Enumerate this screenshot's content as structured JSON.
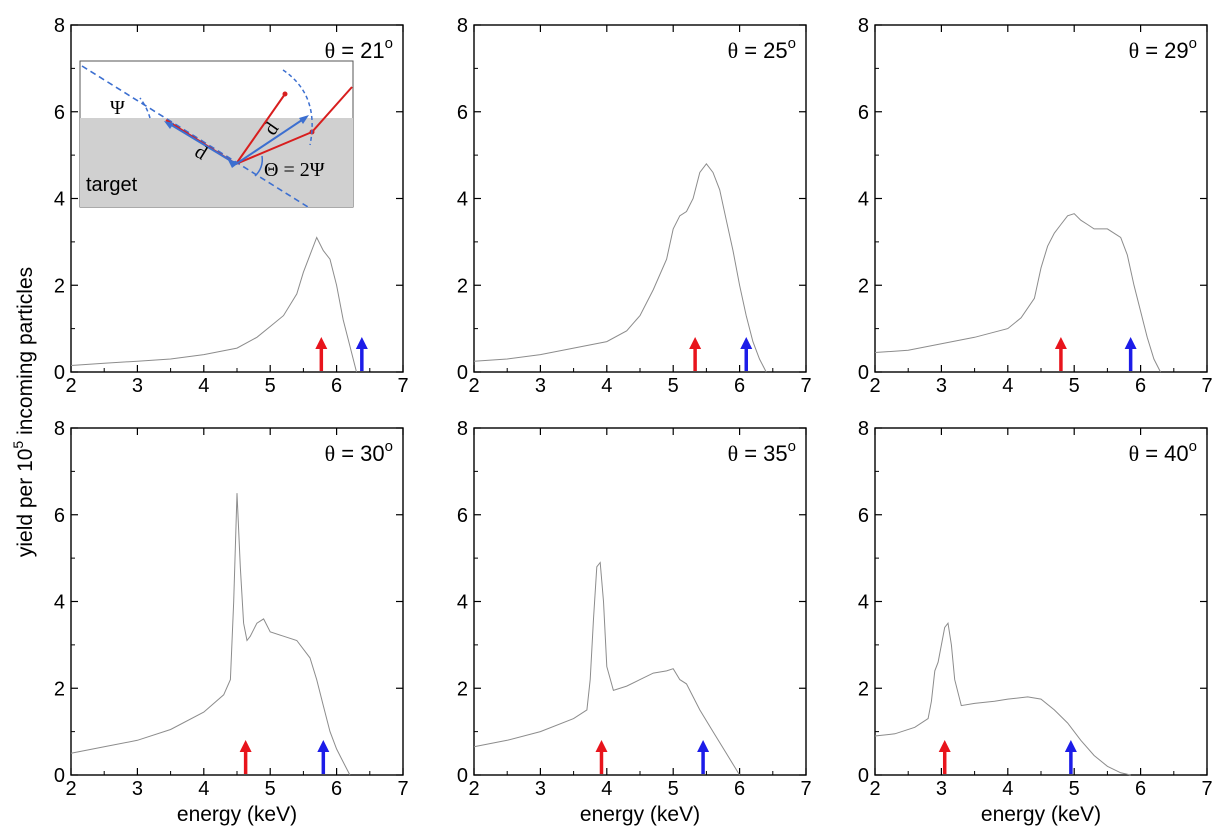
{
  "figure": {
    "ylabel_main": "yield per 10",
    "ylabel_sup": "5",
    "ylabel_rest": " incoming particles",
    "xlabel": "energy (keV)"
  },
  "inset": {
    "psi": "Ψ",
    "d_left": "d",
    "d_right": "d",
    "theta_eq": "Θ = 2Ψ",
    "target": "target"
  },
  "chart_data": [
    {
      "type": "line",
      "annotation_symbol": "θ",
      "annotation_value": " = 21",
      "annotation_sup": "o",
      "xlabel": "",
      "ylabel": "",
      "xlim": [
        2,
        7
      ],
      "ylim": [
        0,
        8
      ],
      "xticks": [
        "2",
        "3",
        "4",
        "5",
        "6",
        "7"
      ],
      "yticks": [
        "0",
        "2",
        "4",
        "6",
        "8"
      ],
      "grid": false,
      "series": [
        {
          "line_color": "#8c8c8c",
          "x": [
            2.0,
            2.5,
            3.0,
            3.5,
            4.0,
            4.5,
            4.8,
            5.0,
            5.2,
            5.4,
            5.5,
            5.6,
            5.7,
            5.8,
            5.9,
            6.0,
            6.1,
            6.2,
            6.3
          ],
          "y": [
            0.15,
            0.2,
            0.25,
            0.3,
            0.4,
            0.55,
            0.8,
            1.05,
            1.3,
            1.8,
            2.3,
            2.7,
            3.1,
            2.8,
            2.6,
            2.0,
            1.2,
            0.6,
            0.0
          ]
        }
      ],
      "arrows": [
        {
          "x": 5.77,
          "color": "#e8141c"
        },
        {
          "x": 6.38,
          "color": "#1c1ce8"
        }
      ]
    },
    {
      "type": "line",
      "annotation_symbol": "θ",
      "annotation_value": " = 25",
      "annotation_sup": "o",
      "xlabel": "",
      "ylabel": "",
      "xlim": [
        2,
        7
      ],
      "ylim": [
        0,
        8
      ],
      "xticks": [
        "2",
        "3",
        "4",
        "5",
        "6",
        "7"
      ],
      "yticks": [
        "0",
        "2",
        "4",
        "6",
        "8"
      ],
      "grid": false,
      "series": [
        {
          "line_color": "#8c8c8c",
          "x": [
            2.0,
            2.5,
            3.0,
            3.5,
            4.0,
            4.3,
            4.5,
            4.7,
            4.9,
            5.0,
            5.1,
            5.2,
            5.3,
            5.4,
            5.5,
            5.6,
            5.7,
            5.8,
            5.9,
            6.0,
            6.1,
            6.2,
            6.3,
            6.4
          ],
          "y": [
            0.25,
            0.3,
            0.4,
            0.55,
            0.7,
            0.95,
            1.3,
            1.9,
            2.6,
            3.3,
            3.6,
            3.7,
            4.0,
            4.6,
            4.8,
            4.6,
            4.2,
            3.5,
            2.8,
            2.0,
            1.3,
            0.7,
            0.3,
            0.0
          ]
        }
      ],
      "arrows": [
        {
          "x": 5.33,
          "color": "#e8141c"
        },
        {
          "x": 6.1,
          "color": "#1c1ce8"
        }
      ]
    },
    {
      "type": "line",
      "annotation_symbol": "θ",
      "annotation_value": " = 29",
      "annotation_sup": "o",
      "xlabel": "",
      "ylabel": "",
      "xlim": [
        2,
        7
      ],
      "ylim": [
        0,
        8
      ],
      "xticks": [
        "2",
        "3",
        "4",
        "5",
        "6",
        "7"
      ],
      "yticks": [
        "0",
        "2",
        "4",
        "6",
        "8"
      ],
      "grid": false,
      "series": [
        {
          "line_color": "#8c8c8c",
          "x": [
            2.0,
            2.5,
            3.0,
            3.5,
            4.0,
            4.2,
            4.4,
            4.5,
            4.6,
            4.7,
            4.8,
            4.9,
            5.0,
            5.1,
            5.2,
            5.3,
            5.5,
            5.7,
            5.8,
            5.9,
            6.0,
            6.1,
            6.2,
            6.3
          ],
          "y": [
            0.45,
            0.5,
            0.65,
            0.8,
            1.0,
            1.25,
            1.7,
            2.4,
            2.9,
            3.2,
            3.4,
            3.6,
            3.65,
            3.5,
            3.4,
            3.3,
            3.3,
            3.1,
            2.7,
            2.0,
            1.4,
            0.8,
            0.3,
            0.0
          ]
        }
      ],
      "arrows": [
        {
          "x": 4.8,
          "color": "#e8141c"
        },
        {
          "x": 5.85,
          "color": "#1c1ce8"
        }
      ]
    },
    {
      "type": "line",
      "annotation_symbol": "θ",
      "annotation_value": " = 30",
      "annotation_sup": "o",
      "xlabel": "energy (keV)",
      "ylabel": "",
      "xlim": [
        2,
        7
      ],
      "ylim": [
        0,
        8
      ],
      "xticks": [
        "2",
        "3",
        "4",
        "5",
        "6",
        "7"
      ],
      "yticks": [
        "0",
        "2",
        "4",
        "6",
        "8"
      ],
      "grid": false,
      "series": [
        {
          "line_color": "#8c8c8c",
          "x": [
            2.0,
            2.5,
            3.0,
            3.5,
            4.0,
            4.3,
            4.4,
            4.45,
            4.5,
            4.55,
            4.6,
            4.65,
            4.7,
            4.8,
            4.9,
            5.0,
            5.2,
            5.4,
            5.6,
            5.7,
            5.8,
            5.9,
            6.0,
            6.1,
            6.2
          ],
          "y": [
            0.5,
            0.65,
            0.8,
            1.05,
            1.45,
            1.85,
            2.2,
            4.0,
            6.5,
            4.8,
            3.5,
            3.1,
            3.2,
            3.5,
            3.6,
            3.3,
            3.2,
            3.1,
            2.7,
            2.2,
            1.6,
            1.0,
            0.6,
            0.3,
            0.0
          ]
        }
      ],
      "arrows": [
        {
          "x": 4.63,
          "color": "#e8141c"
        },
        {
          "x": 5.8,
          "color": "#1c1ce8"
        }
      ]
    },
    {
      "type": "line",
      "annotation_symbol": "θ",
      "annotation_value": " = 35",
      "annotation_sup": "o",
      "xlabel": "energy (keV)",
      "ylabel": "",
      "xlim": [
        2,
        7
      ],
      "ylim": [
        0,
        8
      ],
      "xticks": [
        "2",
        "3",
        "4",
        "5",
        "6",
        "7"
      ],
      "yticks": [
        "0",
        "2",
        "4",
        "6",
        "8"
      ],
      "grid": false,
      "series": [
        {
          "line_color": "#8c8c8c",
          "x": [
            2.0,
            2.5,
            3.0,
            3.5,
            3.7,
            3.75,
            3.8,
            3.85,
            3.9,
            3.95,
            4.0,
            4.1,
            4.3,
            4.5,
            4.7,
            4.9,
            5.0,
            5.1,
            5.2,
            5.4,
            5.6,
            5.8,
            6.0
          ],
          "y": [
            0.65,
            0.8,
            1.0,
            1.3,
            1.5,
            2.2,
            3.6,
            4.8,
            4.9,
            4.0,
            2.5,
            1.95,
            2.05,
            2.2,
            2.35,
            2.4,
            2.45,
            2.2,
            2.1,
            1.5,
            1.0,
            0.5,
            0.0
          ]
        }
      ],
      "arrows": [
        {
          "x": 3.92,
          "color": "#e8141c"
        },
        {
          "x": 5.45,
          "color": "#1c1ce8"
        }
      ]
    },
    {
      "type": "line",
      "annotation_symbol": "θ",
      "annotation_value": " = 40",
      "annotation_sup": "o",
      "xlabel": "energy (keV)",
      "ylabel": "",
      "xlim": [
        2,
        7
      ],
      "ylim": [
        0,
        8
      ],
      "xticks": [
        "2",
        "3",
        "4",
        "5",
        "6",
        "7"
      ],
      "yticks": [
        "0",
        "2",
        "4",
        "6",
        "8"
      ],
      "grid": false,
      "series": [
        {
          "line_color": "#8c8c8c",
          "x": [
            2.0,
            2.3,
            2.6,
            2.8,
            2.85,
            2.9,
            2.95,
            3.0,
            3.05,
            3.1,
            3.15,
            3.2,
            3.3,
            3.5,
            3.8,
            4.0,
            4.3,
            4.5,
            4.7,
            4.9,
            5.1,
            5.3,
            5.5,
            5.7,
            5.85
          ],
          "y": [
            0.9,
            0.95,
            1.1,
            1.3,
            1.7,
            2.4,
            2.6,
            3.0,
            3.4,
            3.5,
            3.0,
            2.2,
            1.6,
            1.65,
            1.7,
            1.75,
            1.8,
            1.75,
            1.5,
            1.2,
            0.8,
            0.45,
            0.2,
            0.05,
            0.0
          ]
        }
      ],
      "arrows": [
        {
          "x": 3.05,
          "color": "#e8141c"
        },
        {
          "x": 4.95,
          "color": "#1c1ce8"
        }
      ]
    }
  ]
}
